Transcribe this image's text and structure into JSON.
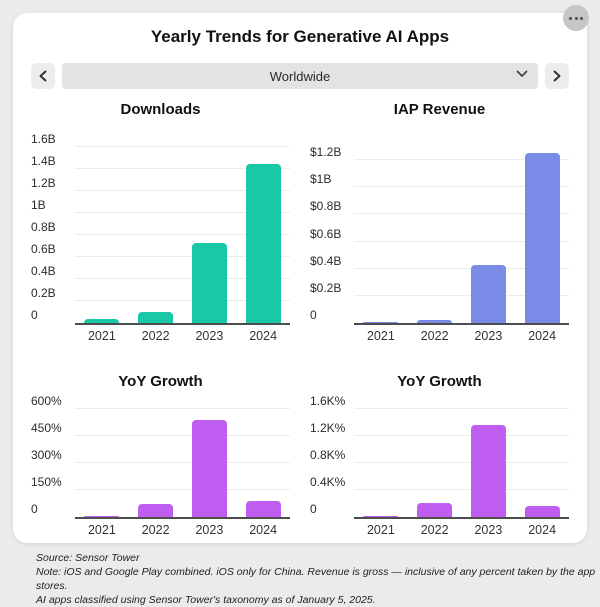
{
  "header": {
    "title": "Yearly Trends for Generative AI Apps",
    "menu_icon": "ellipsis-icon"
  },
  "selector": {
    "value": "Worldwide",
    "prev_icon": "chevron-left-icon",
    "next_icon": "chevron-right-icon",
    "dropdown_icon": "chevron-down-icon"
  },
  "chart_data": [
    {
      "type": "bar",
      "title": "Downloads",
      "categories": [
        "2021",
        "2022",
        "2023",
        "2024"
      ],
      "values": [
        0.04,
        0.1,
        0.73,
        1.45
      ],
      "unit": "B downloads",
      "color": "#19c8a7",
      "ylim": [
        0,
        1.6
      ],
      "grid": true,
      "yticks": [
        {
          "value": 0,
          "label": "0"
        },
        {
          "value": 0.2,
          "label": "0.2B"
        },
        {
          "value": 0.4,
          "label": "0.4B"
        },
        {
          "value": 0.6,
          "label": "0.6B"
        },
        {
          "value": 0.8,
          "label": "0.8B"
        },
        {
          "value": 1.0,
          "label": "1B"
        },
        {
          "value": 1.2,
          "label": "1.2B"
        },
        {
          "value": 1.4,
          "label": "1.4B"
        },
        {
          "value": 1.6,
          "label": "1.6B"
        }
      ]
    },
    {
      "type": "bar",
      "title": "IAP Revenue",
      "categories": [
        "2021",
        "2022",
        "2023",
        "2024"
      ],
      "values": [
        0.005,
        0.02,
        0.43,
        1.25
      ],
      "unit": "$B",
      "color": "#7a8ae7",
      "ylim": [
        0,
        1.2
      ],
      "grid": true,
      "yticks": [
        {
          "value": 0,
          "label": "0"
        },
        {
          "value": 0.2,
          "label": "$0.2B"
        },
        {
          "value": 0.4,
          "label": "$0.4B"
        },
        {
          "value": 0.6,
          "label": "$0.6B"
        },
        {
          "value": 0.8,
          "label": "$0.8B"
        },
        {
          "value": 1.0,
          "label": "$1B"
        },
        {
          "value": 1.2,
          "label": "$1.2B"
        }
      ]
    },
    {
      "type": "bar",
      "title": "YoY Growth",
      "categories": [
        "2021",
        "2022",
        "2023",
        "2024"
      ],
      "values": [
        5,
        75,
        540,
        90
      ],
      "unit": "%",
      "color": "#bf5ef0",
      "ylim": [
        0,
        600
      ],
      "grid": true,
      "yticks": [
        {
          "value": 0,
          "label": "0"
        },
        {
          "value": 150,
          "label": "150%"
        },
        {
          "value": 300,
          "label": "300%"
        },
        {
          "value": 450,
          "label": "450%"
        },
        {
          "value": 600,
          "label": "600%"
        }
      ]
    },
    {
      "type": "bar",
      "title": "YoY Growth",
      "categories": [
        "2021",
        "2022",
        "2023",
        "2024"
      ],
      "values": [
        10,
        210,
        1370,
        160
      ],
      "unit": "%",
      "color": "#bf5ef0",
      "ylim": [
        0,
        1600
      ],
      "grid": true,
      "yticks": [
        {
          "value": 0,
          "label": "0"
        },
        {
          "value": 400,
          "label": "0.4K%"
        },
        {
          "value": 800,
          "label": "0.8K%"
        },
        {
          "value": 1200,
          "label": "1.2K%"
        },
        {
          "value": 1600,
          "label": "1.6K%"
        }
      ]
    }
  ],
  "footer": {
    "lines": [
      "Source: Sensor Tower",
      "Note: iOS and Google Play combined. iOS only for China. Revenue is gross — inclusive of any percent taken by the app stores.",
      "AI apps classified using Sensor Tower's taxonomy as of January 5, 2025."
    ]
  }
}
